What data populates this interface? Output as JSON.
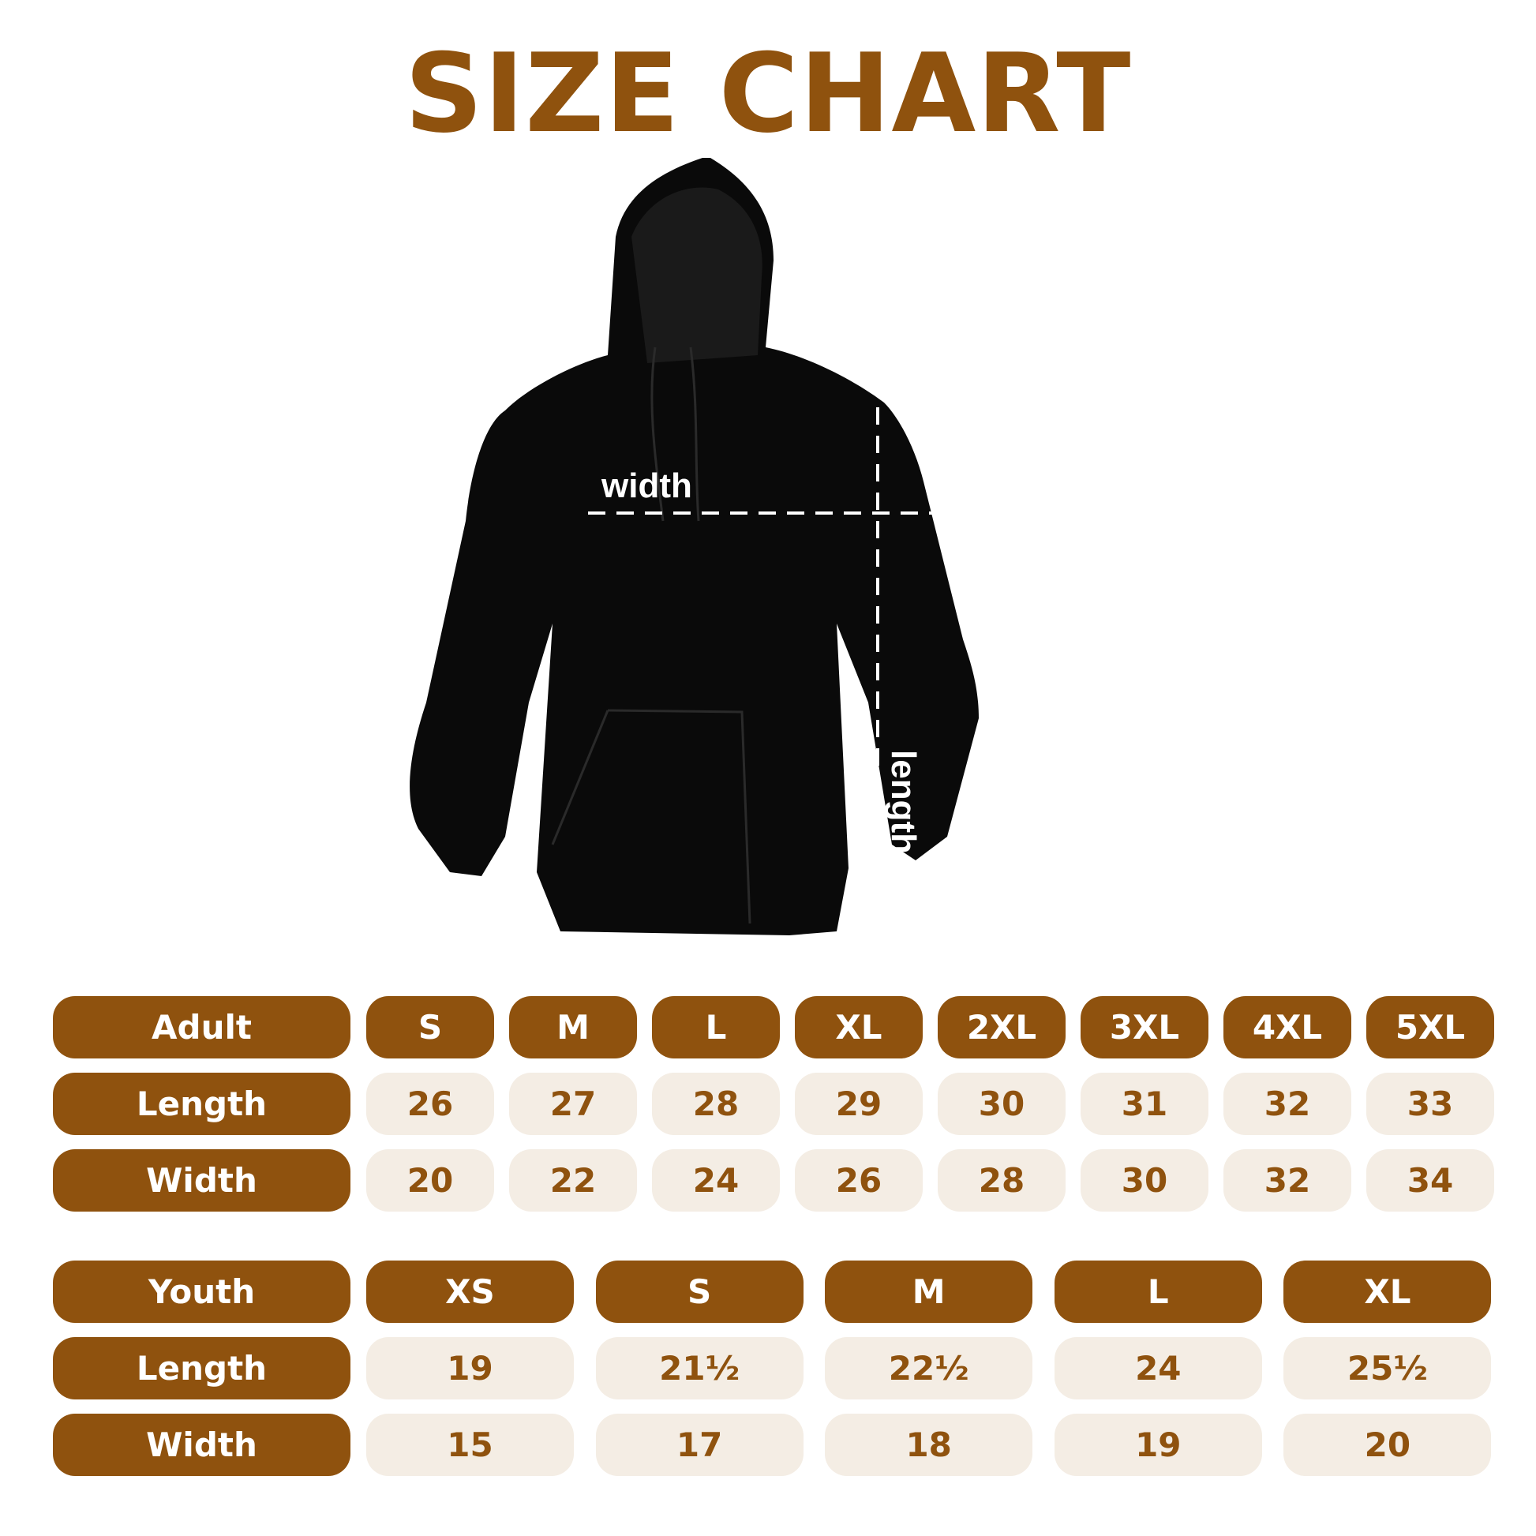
{
  "title": "SIZE CHART",
  "diagram": {
    "width_label": "width",
    "length_label": "length"
  },
  "colors": {
    "brand": "#8f520e",
    "cell_bg": "#f4ede4",
    "hoodie": "#0a0a0a"
  },
  "adult": {
    "header": "Adult",
    "sizes": [
      "S",
      "M",
      "L",
      "XL",
      "2XL",
      "3XL",
      "4XL",
      "5XL"
    ],
    "rows": [
      {
        "label": "Length",
        "values": [
          "26",
          "27",
          "28",
          "29",
          "30",
          "31",
          "32",
          "33"
        ]
      },
      {
        "label": "Width",
        "values": [
          "20",
          "22",
          "24",
          "26",
          "28",
          "30",
          "32",
          "34"
        ]
      }
    ]
  },
  "youth": {
    "header": "Youth",
    "sizes": [
      "XS",
      "S",
      "M",
      "L",
      "XL"
    ],
    "rows": [
      {
        "label": "Length",
        "values": [
          "19",
          "21½",
          "22½",
          "24",
          "25½"
        ]
      },
      {
        "label": "Width",
        "values": [
          "15",
          "17",
          "18",
          "19",
          "20"
        ]
      }
    ]
  }
}
